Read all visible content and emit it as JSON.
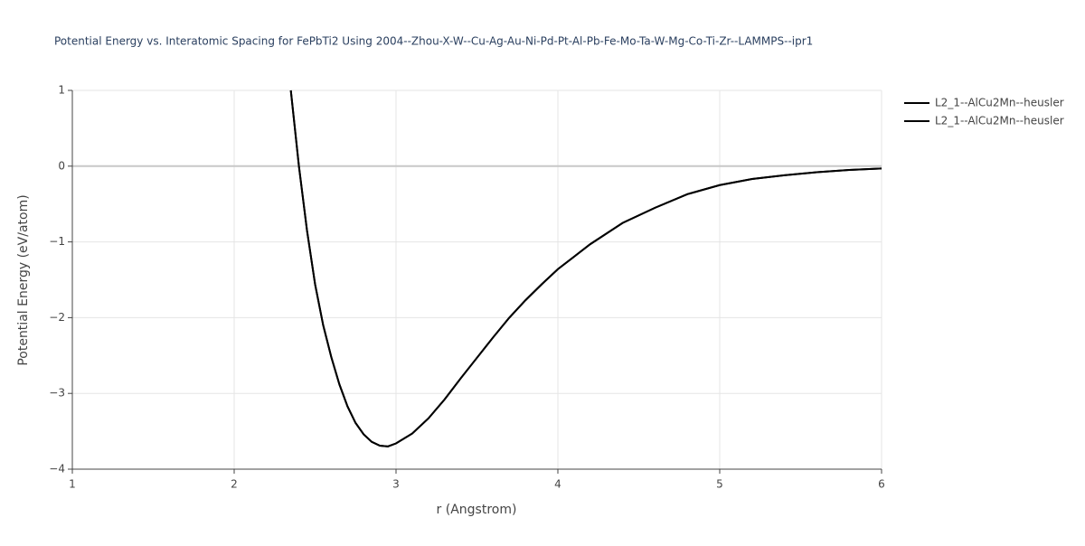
{
  "chart_data": {
    "type": "line",
    "title": "Potential Energy vs. Interatomic Spacing for FePbTi2 Using 2004--Zhou-X-W--Cu-Ag-Au-Ni-Pd-Pt-Al-Pb-Fe-Mo-Ta-W-Mg-Co-Ti-Zr--LAMMPS--ipr1",
    "x_label": "r (Angstrom)",
    "y_label": "Potential Energy (eV/atom)",
    "x": [
      2.35,
      2.4,
      2.45,
      2.5,
      2.55,
      2.6,
      2.65,
      2.7,
      2.75,
      2.8,
      2.85,
      2.9,
      2.95,
      3.0,
      3.1,
      3.2,
      3.3,
      3.4,
      3.5,
      3.6,
      3.7,
      3.8,
      3.9,
      4.0,
      4.2,
      4.4,
      4.6,
      4.8,
      5.0,
      5.2,
      5.4,
      5.6,
      5.8,
      6.0
    ],
    "series": [
      {
        "name": "L2_1--AlCu2Mn--heusler",
        "color": "#000000",
        "values": [
          1.0,
          0.0,
          -0.85,
          -1.56,
          -2.1,
          -2.52,
          -2.88,
          -3.17,
          -3.39,
          -3.54,
          -3.64,
          -3.69,
          -3.7,
          -3.66,
          -3.53,
          -3.33,
          -3.08,
          -2.8,
          -2.53,
          -2.26,
          -2.0,
          -1.77,
          -1.56,
          -1.36,
          -1.03,
          -0.75,
          -0.55,
          -0.37,
          -0.25,
          -0.17,
          -0.12,
          -0.08,
          -0.05,
          -0.03
        ]
      },
      {
        "name": "L2_1--AlCu2Mn--heusler",
        "color": "#000000",
        "values": [
          1.0,
          0.0,
          -0.85,
          -1.56,
          -2.1,
          -2.52,
          -2.88,
          -3.17,
          -3.39,
          -3.54,
          -3.64,
          -3.69,
          -3.7,
          -3.66,
          -3.53,
          -3.33,
          -3.08,
          -2.8,
          -2.53,
          -2.26,
          -2.0,
          -1.77,
          -1.56,
          -1.36,
          -1.03,
          -0.75,
          -0.55,
          -0.37,
          -0.25,
          -0.17,
          -0.12,
          -0.08,
          -0.05,
          -0.03
        ]
      }
    ],
    "xlim": [
      1,
      6
    ],
    "xticks": [
      1,
      2,
      3,
      4,
      5,
      6
    ],
    "ylim": [
      -4,
      1
    ],
    "yticks": [
      {
        "value": -4,
        "label": "−4"
      },
      {
        "value": -3,
        "label": "−3"
      },
      {
        "value": -2,
        "label": "−2"
      },
      {
        "value": -1,
        "label": "−1"
      },
      0,
      1
    ],
    "grid": true,
    "legend": "right"
  }
}
